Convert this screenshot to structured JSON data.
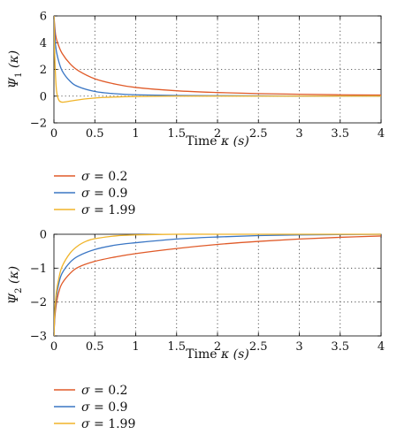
{
  "chart_data": [
    {
      "type": "line",
      "xlabel_text": "Time ",
      "xlabel_var": "κ",
      "xlabel_unit": "(s)",
      "ylabel_main": "Ψ",
      "ylabel_sub": "1",
      "ylabel_arg": "(κ)",
      "xlim": [
        0,
        4
      ],
      "ylim": [
        -2,
        6
      ],
      "xticks": [
        "0",
        "0.5",
        "1",
        "1.5",
        "2",
        "2.5",
        "3",
        "3.5",
        "4"
      ],
      "xtick_values": [
        0,
        0.5,
        1,
        1.5,
        2,
        2.5,
        3,
        3.5,
        4
      ],
      "yticks": [
        "−2",
        "0",
        "2",
        "4",
        "6"
      ],
      "ytick_values": [
        -2,
        0,
        2,
        4,
        6
      ],
      "grid": true,
      "legend_position": "below",
      "series": [
        {
          "name": "σ = 0.2",
          "color": "#e05a28",
          "x": [
            0,
            0.02,
            0.05,
            0.1,
            0.2,
            0.3,
            0.5,
            0.75,
            1,
            1.5,
            2,
            2.5,
            3,
            3.5,
            4
          ],
          "y": [
            6,
            4.6,
            3.9,
            3.2,
            2.4,
            1.9,
            1.3,
            0.9,
            0.65,
            0.4,
            0.27,
            0.19,
            0.14,
            0.1,
            0.08
          ]
        },
        {
          "name": "σ = 0.9",
          "color": "#3a76c4",
          "x": [
            0,
            0.02,
            0.05,
            0.1,
            0.2,
            0.3,
            0.5,
            0.75,
            1,
            1.5,
            2,
            2.5,
            3,
            3.5,
            4
          ],
          "y": [
            6,
            3.8,
            2.8,
            1.9,
            1.1,
            0.7,
            0.35,
            0.18,
            0.1,
            0.05,
            0.03,
            0.02,
            0.01,
            0.01,
            0.0
          ]
        },
        {
          "name": "σ = 1.99",
          "color": "#f0b429",
          "x": [
            0,
            0.01,
            0.03,
            0.06,
            0.1,
            0.15,
            0.25,
            0.4,
            0.6,
            1,
            1.5,
            2,
            3,
            4
          ],
          "y": [
            6,
            3,
            0.5,
            -0.3,
            -0.45,
            -0.42,
            -0.32,
            -0.2,
            -0.1,
            -0.03,
            0,
            0,
            0,
            0
          ]
        }
      ]
    },
    {
      "type": "line",
      "xlabel_text": "Time ",
      "xlabel_var": "κ",
      "xlabel_unit": "(s)",
      "ylabel_main": "Ψ",
      "ylabel_sub": "2",
      "ylabel_arg": "(κ)",
      "xlim": [
        0,
        4
      ],
      "ylim": [
        -3,
        0
      ],
      "xticks": [
        "0",
        "0.5",
        "1",
        "1.5",
        "2",
        "2.5",
        "3",
        "3.5",
        "4"
      ],
      "xtick_values": [
        0,
        0.5,
        1,
        1.5,
        2,
        2.5,
        3,
        3.5,
        4
      ],
      "yticks": [
        "−3",
        "−2",
        "−1",
        "0"
      ],
      "ytick_values": [
        -3,
        -2,
        -1,
        0
      ],
      "grid": true,
      "legend_position": "below",
      "series": [
        {
          "name": "σ = 0.2",
          "color": "#e05a28",
          "x": [
            0,
            0.01,
            0.03,
            0.06,
            0.1,
            0.2,
            0.3,
            0.5,
            0.75,
            1,
            1.5,
            2,
            2.5,
            3,
            3.5,
            4
          ],
          "y": [
            -3,
            -2.5,
            -2.05,
            -1.7,
            -1.45,
            -1.15,
            -0.97,
            -0.8,
            -0.67,
            -0.57,
            -0.42,
            -0.3,
            -0.21,
            -0.14,
            -0.09,
            -0.05
          ]
        },
        {
          "name": "σ = 0.9",
          "color": "#3a76c4",
          "x": [
            0,
            0.01,
            0.03,
            0.06,
            0.1,
            0.2,
            0.3,
            0.5,
            0.75,
            1,
            1.5,
            2,
            2.5,
            3,
            3.5,
            4
          ],
          "y": [
            -3,
            -2.4,
            -1.85,
            -1.45,
            -1.15,
            -0.82,
            -0.64,
            -0.45,
            -0.32,
            -0.25,
            -0.14,
            -0.08,
            -0.04,
            -0.02,
            -0.01,
            0
          ]
        },
        {
          "name": "σ = 1.99",
          "color": "#f0b429",
          "x": [
            0,
            0.01,
            0.03,
            0.06,
            0.1,
            0.2,
            0.3,
            0.4,
            0.5,
            0.75,
            1,
            1.5,
            2,
            3,
            4
          ],
          "y": [
            -3,
            -2.3,
            -1.7,
            -1.3,
            -0.95,
            -0.55,
            -0.33,
            -0.2,
            -0.13,
            -0.05,
            -0.02,
            0,
            0,
            0,
            0
          ]
        }
      ]
    }
  ]
}
